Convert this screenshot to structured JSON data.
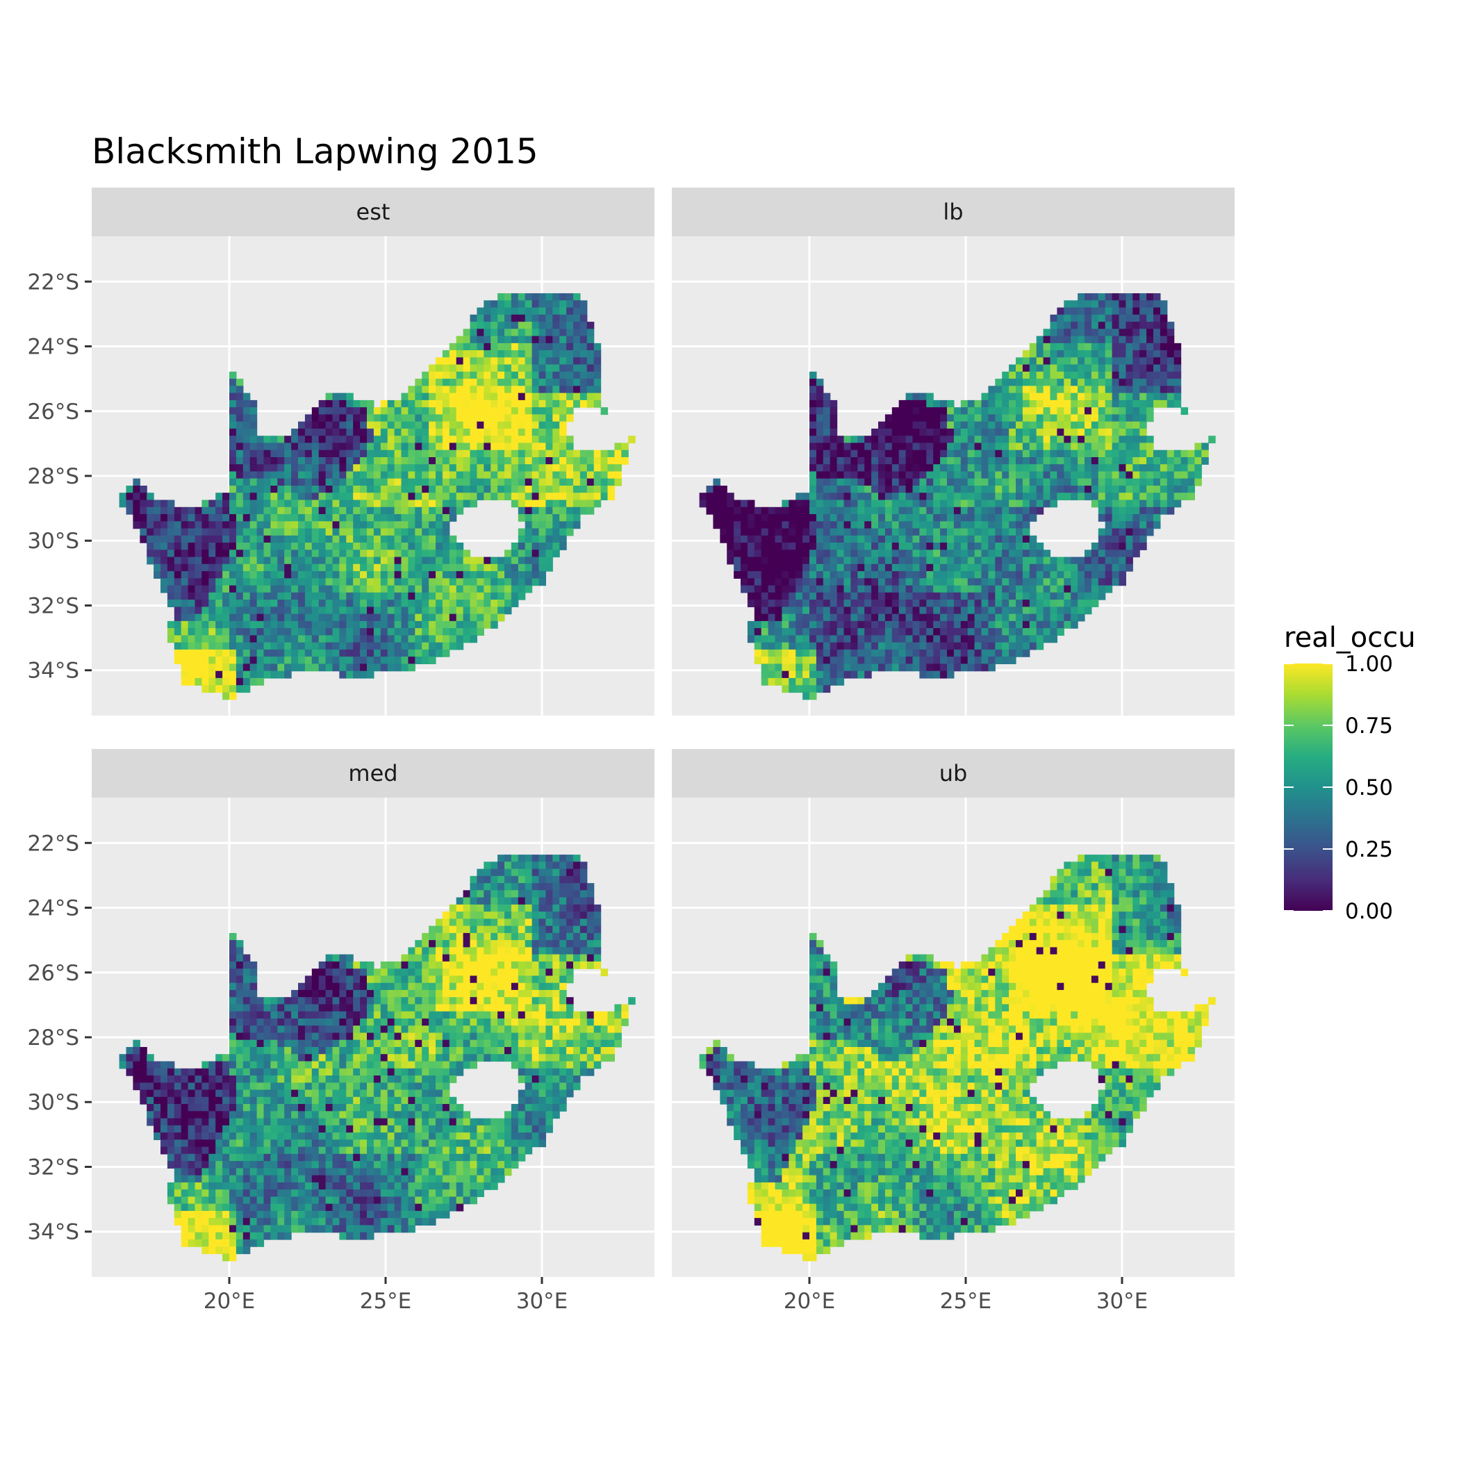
{
  "title": "Blacksmith Lapwing 2015",
  "panels": [
    {
      "label": "est",
      "variant": 0
    },
    {
      "label": "lb",
      "variant": 1
    },
    {
      "label": "med",
      "variant": 2
    },
    {
      "label": "ub",
      "variant": 3
    }
  ],
  "axes": {
    "lon_ticks": [
      {
        "value": 20,
        "label": "20°E"
      },
      {
        "value": 25,
        "label": "25°E"
      },
      {
        "value": 30,
        "label": "30°E"
      }
    ],
    "lat_ticks": [
      {
        "value": -22,
        "label": "22°S"
      },
      {
        "value": -24,
        "label": "24°S"
      },
      {
        "value": -26,
        "label": "26°S"
      },
      {
        "value": -28,
        "label": "28°S"
      },
      {
        "value": -30,
        "label": "30°S"
      },
      {
        "value": -32,
        "label": "32°S"
      },
      {
        "value": -34,
        "label": "34°S"
      }
    ],
    "lon_range": [
      15.6,
      33.6
    ],
    "lat_range": [
      -35.4,
      -20.6
    ]
  },
  "legend": {
    "title": "real_occu",
    "ticks": [
      {
        "value": 1.0,
        "label": "1.00"
      },
      {
        "value": 0.75,
        "label": "0.75"
      },
      {
        "value": 0.5,
        "label": "0.50"
      },
      {
        "value": 0.25,
        "label": "0.25"
      },
      {
        "value": 0.0,
        "label": "0.00"
      }
    ],
    "colors": [
      "#440154",
      "#3b528b",
      "#21918c",
      "#5ec962",
      "#fde725"
    ]
  },
  "colors": {
    "panel_bg": "#ebebeb",
    "strip_bg": "#d9d9d9",
    "grid": "#ffffff",
    "tick": "#333333"
  },
  "outline": [
    [
      16.45,
      -28.6
    ],
    [
      17.05,
      -28.1
    ],
    [
      17.4,
      -28.6
    ],
    [
      18.3,
      -28.85
    ],
    [
      19.1,
      -28.9
    ],
    [
      19.9,
      -28.5
    ],
    [
      20.0,
      -24.75
    ],
    [
      20.85,
      -25.65
    ],
    [
      20.8,
      -26.8
    ],
    [
      21.7,
      -26.85
    ],
    [
      22.6,
      -26.0
    ],
    [
      23.5,
      -25.3
    ],
    [
      24.7,
      -25.85
    ],
    [
      25.6,
      -25.5
    ],
    [
      26.5,
      -24.6
    ],
    [
      27.2,
      -23.8
    ],
    [
      28.2,
      -22.7
    ],
    [
      29.0,
      -22.3
    ],
    [
      30.0,
      -22.25
    ],
    [
      31.3,
      -22.5
    ],
    [
      31.9,
      -24.4
    ],
    [
      32.0,
      -26.0
    ],
    [
      31.1,
      -25.8
    ],
    [
      30.8,
      -26.5
    ],
    [
      31.2,
      -27.3
    ],
    [
      31.9,
      -27.2
    ],
    [
      32.9,
      -26.85
    ],
    [
      32.4,
      -28.5
    ],
    [
      31.3,
      -29.3
    ],
    [
      30.0,
      -31.3
    ],
    [
      28.4,
      -32.7
    ],
    [
      26.5,
      -33.8
    ],
    [
      25.5,
      -34.0
    ],
    [
      24.0,
      -34.2
    ],
    [
      22.5,
      -34.0
    ],
    [
      21.0,
      -34.4
    ],
    [
      20.0,
      -34.85
    ],
    [
      19.3,
      -34.6
    ],
    [
      18.4,
      -34.3
    ],
    [
      18.3,
      -33.4
    ],
    [
      17.9,
      -32.7
    ],
    [
      18.2,
      -32.3
    ],
    [
      17.2,
      -30.0
    ]
  ],
  "lesotho": [
    [
      27.0,
      -29.6
    ],
    [
      27.5,
      -29.0
    ],
    [
      28.4,
      -28.6
    ],
    [
      29.1,
      -28.9
    ],
    [
      29.4,
      -29.6
    ],
    [
      28.9,
      -30.3
    ],
    [
      28.2,
      -30.6
    ],
    [
      27.6,
      -30.4
    ]
  ],
  "low_region": [
    [
      19.98,
      -24.9
    ],
    [
      20.8,
      -25.7
    ],
    [
      20.8,
      -26.85
    ],
    [
      21.7,
      -26.9
    ],
    [
      22.6,
      -26.1
    ],
    [
      23.0,
      -25.6
    ],
    [
      24.4,
      -25.9
    ],
    [
      24.6,
      -26.9
    ],
    [
      24.2,
      -27.6
    ],
    [
      23.4,
      -28.4
    ],
    [
      22.5,
      -28.8
    ],
    [
      21.8,
      -28.3
    ],
    [
      21.0,
      -28.0
    ],
    [
      20.2,
      -28.2
    ],
    [
      19.98,
      -27.5
    ]
  ],
  "west_region": [
    [
      16.6,
      -28.6
    ],
    [
      17.1,
      -28.2
    ],
    [
      17.5,
      -28.7
    ],
    [
      18.4,
      -28.9
    ],
    [
      19.2,
      -28.9
    ],
    [
      20.0,
      -28.7
    ],
    [
      20.3,
      -29.8
    ],
    [
      19.6,
      -31.2
    ],
    [
      19.0,
      -32.4
    ],
    [
      18.3,
      -32.6
    ],
    [
      17.8,
      -31.4
    ]
  ]
}
